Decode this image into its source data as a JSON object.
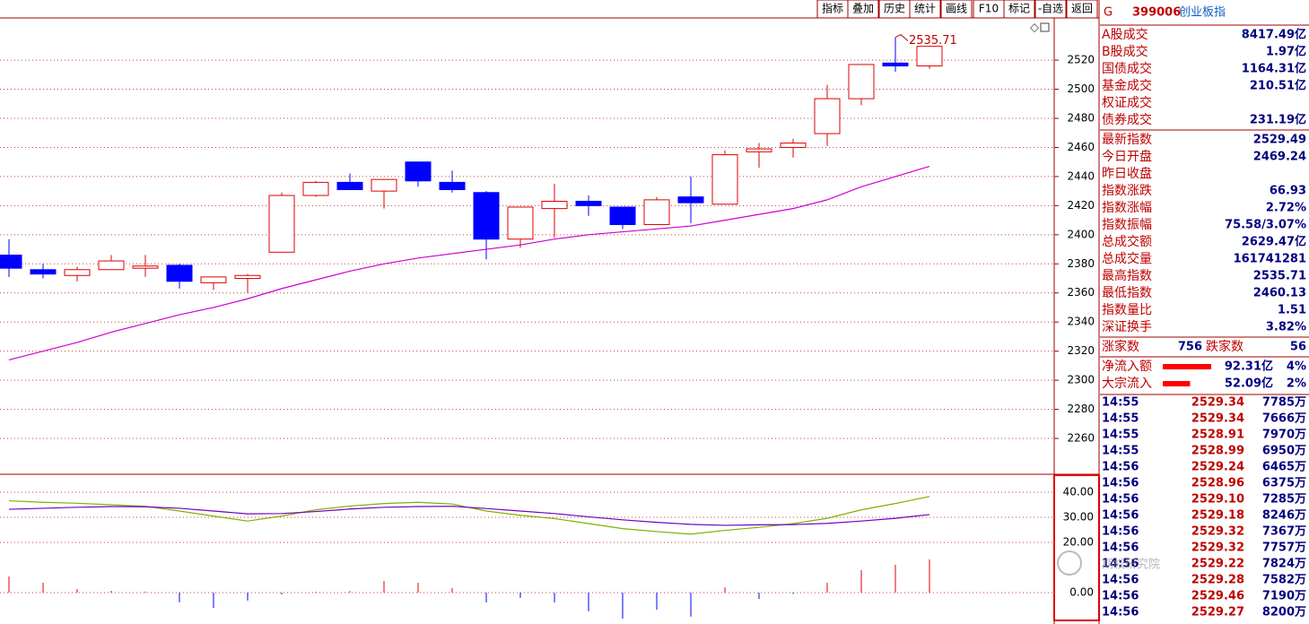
{
  "toolbar": [
    "指标",
    "叠加",
    "历史",
    "统计",
    "画线",
    "F10",
    "标记",
    "-自选",
    "返回"
  ],
  "chart": {
    "type": "candlestick",
    "high_label": "2535.71",
    "open": [
      2386,
      2376,
      2372,
      2376,
      2377,
      2379,
      2367,
      2370,
      2388,
      2427,
      2436,
      2430,
      2450,
      2436,
      2429,
      2397,
      2418,
      2423,
      2419,
      2407,
      2426,
      2421,
      2457,
      2460,
      2469.5,
      2493.5,
      2518,
      2516
    ],
    "high": [
      2397,
      2380,
      2378,
      2386,
      2386,
      2380,
      2371,
      2373,
      2429,
      2437,
      2442,
      2438,
      2450,
      2444,
      2430,
      2419,
      2435,
      2427,
      2419,
      2426,
      2440,
      2458,
      2463,
      2466,
      2503,
      2517,
      2535.71,
      2530
    ],
    "low": [
      2371,
      2370,
      2368,
      2376,
      2371,
      2363,
      2362,
      2360,
      2388,
      2426,
      2431,
      2418,
      2433,
      2429,
      2383,
      2391,
      2398,
      2413,
      2404,
      2407,
      2408,
      2421,
      2446,
      2453,
      2461,
      2489,
      2512,
      2514
    ],
    "close": [
      2377,
      2373,
      2376,
      2382,
      2378.5,
      2368,
      2371,
      2372,
      2427,
      2436,
      2431,
      2438,
      2437,
      2431,
      2397,
      2419,
      2423,
      2420,
      2407,
      2424,
      2422,
      2455,
      2459,
      2463,
      2493.5,
      2517,
      2516,
      2529.5
    ],
    "ma": [
      2314,
      2320,
      2326,
      2333,
      2339,
      2345,
      2350,
      2356,
      2363,
      2369,
      2375,
      2380,
      2384,
      2387,
      2390,
      2393,
      2397,
      2400,
      2402,
      2404,
      2406,
      2410,
      2414,
      2418,
      2424,
      2433,
      2440,
      2447
    ],
    "up_color": "#e00000",
    "down_color": "#0000ff",
    "ma_color": "#d000d0",
    "ylim": [
      2236,
      2549
    ],
    "yticks": [
      2260,
      2280,
      2300,
      2320,
      2340,
      2360,
      2380,
      2400,
      2420,
      2440,
      2460,
      2480,
      2500,
      2520
    ]
  },
  "indicator": {
    "ylim": [
      -11.1,
      46.8
    ],
    "yticks": [
      {
        "value": 0,
        "label": "0.00"
      },
      {
        "value": 20,
        "label": "20.00"
      },
      {
        "value": 30,
        "label": "30.00"
      },
      {
        "value": 40,
        "label": "40.00"
      }
    ],
    "series": [
      {
        "color": "#80b000",
        "values": [
          36.6,
          36,
          35.6,
          35,
          34.4,
          32.5,
          30.5,
          28.5,
          30.5,
          33,
          34.5,
          35.5,
          36,
          35.3,
          32.5,
          30.8,
          29.5,
          27.5,
          25.5,
          24.3,
          23.3,
          24.8,
          26,
          27.5,
          29.6,
          33,
          35.5,
          38.3
        ]
      },
      {
        "color": "#7000c0",
        "values": [
          33.2,
          33.6,
          34,
          34.3,
          34.2,
          33.6,
          32.5,
          31.4,
          31.5,
          32.3,
          33.3,
          34,
          34.3,
          34.4,
          33.5,
          32.5,
          31.5,
          30.2,
          29,
          28,
          27.2,
          26.8,
          27,
          27.1,
          27.6,
          28.5,
          29.6,
          31.1
        ]
      }
    ],
    "bars": [
      6.4,
      3.9,
      1.4,
      0.7,
      0.4,
      -3.9,
      -6.1,
      -3.2,
      -0.7,
      0.3,
      0.6,
      4.6,
      3.9,
      1.8,
      -3.9,
      -2.1,
      -3.9,
      -7.5,
      -10.4,
      -6.8,
      -9.6,
      2.1,
      -2.5,
      -0.5,
      3.9,
      8.9,
      11.1,
      13.2
    ]
  },
  "panel": {
    "marker": "G",
    "code": "399006",
    "name": "创业板指",
    "rows_top": [
      {
        "label": "A股成交",
        "value": "8417.49亿"
      },
      {
        "label": "B股成交",
        "value": "1.97亿"
      },
      {
        "label": "国债成交",
        "value": "1164.31亿"
      },
      {
        "label": "基金成交",
        "value": "210.51亿"
      },
      {
        "label": "权证成交"
      },
      {
        "label": "债券成交",
        "value": "231.19亿"
      }
    ],
    "rows_index": [
      {
        "label": "最新指数",
        "value": "2529.49"
      },
      {
        "label": "今日开盘",
        "value": "2469.24"
      },
      {
        "label": "昨日收盘"
      },
      {
        "label": "指数涨跌",
        "value": "66.93"
      },
      {
        "label": "指数涨幅",
        "value": "2.72%"
      },
      {
        "label": "指数振幅",
        "value": "75.58/3.07%"
      },
      {
        "label": "总成交额",
        "value": "2629.47亿"
      },
      {
        "label": "总成交量",
        "value": "161741281"
      },
      {
        "label": "最高指数",
        "value": "2535.71"
      },
      {
        "label": "最低指数",
        "value": "2460.13"
      },
      {
        "label": "指数量比",
        "value": "1.51"
      },
      {
        "label": "深证换手",
        "value": "3.82%"
      }
    ],
    "up_label": "涨家数",
    "up_count": 756,
    "down_label": "跌家数",
    "down_count": 56,
    "flows": [
      {
        "label": "净流入额",
        "amount": 92.31,
        "amount_label": "92.31亿",
        "pct": "4%"
      },
      {
        "label": "大宗流入",
        "amount": 52.09,
        "amount_label": "52.09亿",
        "pct": "2%"
      }
    ],
    "ticks": [
      [
        "14:55",
        "2529.34",
        "7785万"
      ],
      [
        "14:55",
        "2529.34",
        "7666万"
      ],
      [
        "14:55",
        "2528.91",
        "7970万"
      ],
      [
        "14:55",
        "2528.99",
        "6950万"
      ],
      [
        "14:56",
        "2529.24",
        "6465万"
      ],
      [
        "14:56",
        "2528.96",
        "6375万"
      ],
      [
        "14:56",
        "2529.10",
        "7285万"
      ],
      [
        "14:56",
        "2529.18",
        "8246万"
      ],
      [
        "14:56",
        "2529.32",
        "7367万"
      ],
      [
        "14:56",
        "2529.32",
        "7757万"
      ],
      [
        "14:56",
        "2529.22",
        "7824万"
      ],
      [
        "14:56",
        "2529.28",
        "7582万"
      ],
      [
        "14:56",
        "2529.46",
        "7190万"
      ],
      [
        "14:56",
        "2529.27",
        "8200万"
      ]
    ]
  },
  "watermark": "期权研究院"
}
